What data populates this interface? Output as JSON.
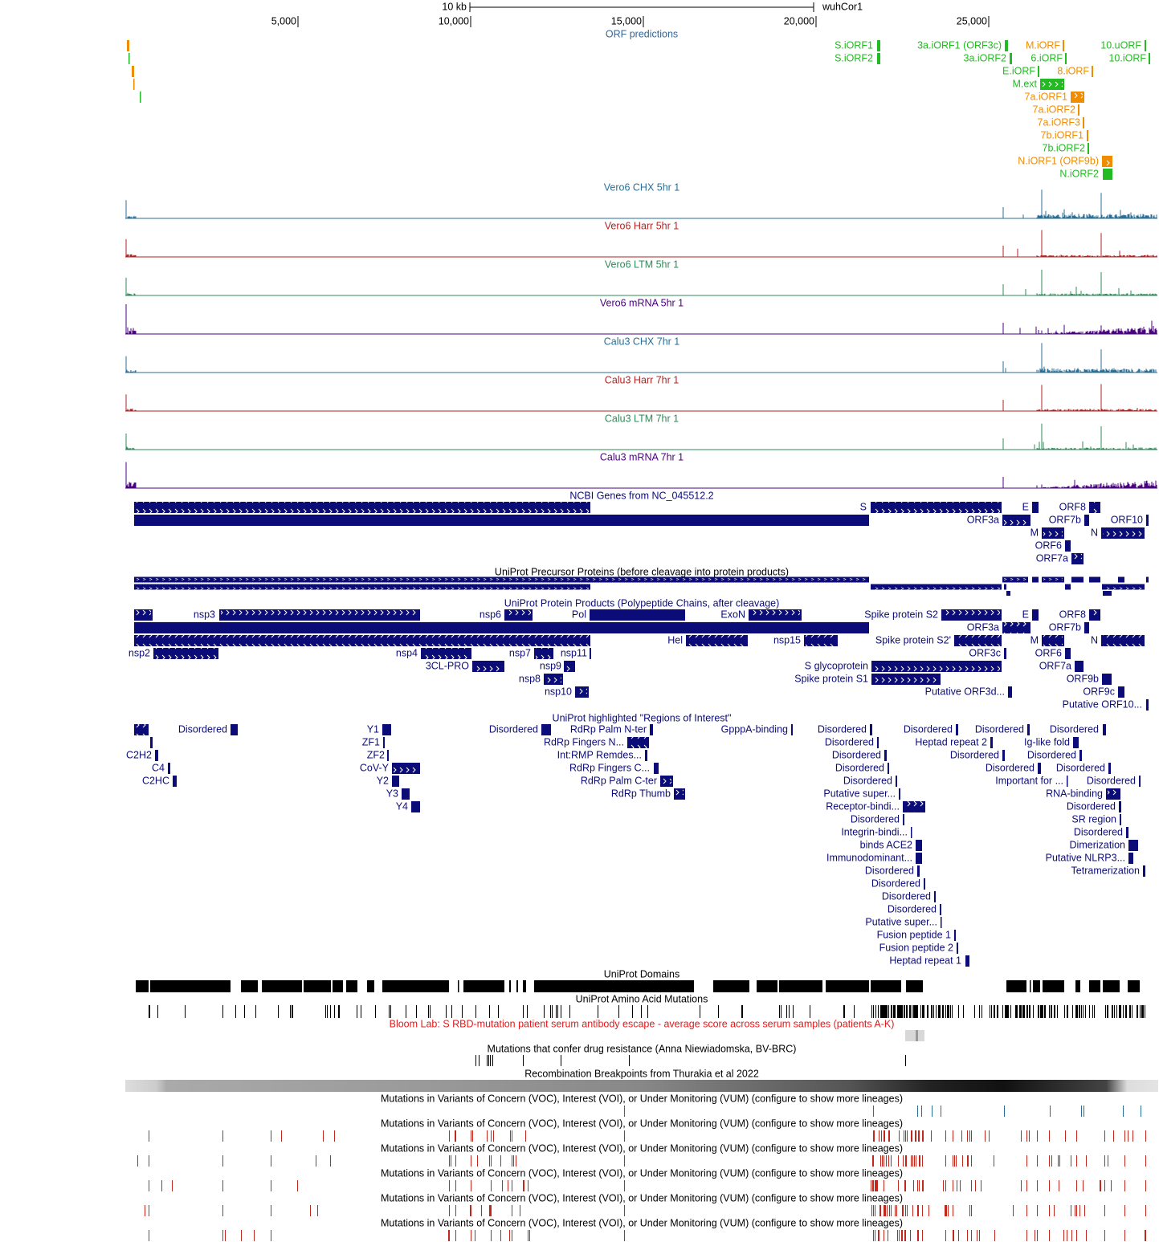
{
  "ruler": {
    "scale": "10 kb",
    "assembly": "wuhCor1",
    "tick_labels": [
      "5,000",
      "10,000",
      "15,000",
      "20,000",
      "25,000"
    ]
  },
  "tracks": [
    {
      "title": "ORF predictions",
      "features": [
        "S.iORF1",
        "S.iORF2",
        "3a.iORF1 (ORF3c)",
        "3a.iORF2",
        "M.iORF",
        "6.iORF",
        "10.uORF",
        "10.iORF",
        "E.iORF",
        "8.iORF",
        "M.ext",
        "7a.iORF1",
        "7a.iORF2",
        "7a.iORF3",
        "7b.iORF1",
        "7b.iORF2",
        "N.iORF1 (ORF9b)",
        "N.iORF2"
      ]
    },
    {
      "title": "Vero6 CHX 5hr 1"
    },
    {
      "title": "Vero6 Harr 5hr 1"
    },
    {
      "title": "Vero6 LTM 5hr 1"
    },
    {
      "title": "Vero6 mRNA 5hr 1"
    },
    {
      "title": "Calu3 CHX 7hr 1"
    },
    {
      "title": "Calu3 Harr 7hr 1"
    },
    {
      "title": "Calu3 LTM 7hr 1"
    },
    {
      "title": "Calu3 mRNA 7hr 1"
    },
    {
      "title": "NCBI Genes from NC_045512.2",
      "features": [
        "S",
        "E",
        "ORF8",
        "ORF3a",
        "ORF7b",
        "ORF10",
        "M",
        "N",
        "ORF6",
        "ORF7a"
      ]
    },
    {
      "title": "UniProt Precursor Proteins (before cleavage into protein products)"
    },
    {
      "title": "UniProt Protein Products (Polypeptide Chains, after cleavage)",
      "features": [
        "nsp3",
        "nsp6",
        "Pol",
        "ExoN",
        "Spike protein S2",
        "E",
        "ORF8",
        "ORF3a",
        "ORF7b",
        "Hel",
        "nsp15",
        "Spike protein S2'",
        "M",
        "N",
        "nsp2",
        "nsp4",
        "nsp7",
        "nsp11",
        "ORF3c",
        "ORF6",
        "3CL-PRO",
        "nsp9",
        "S glycoprotein",
        "ORF7a",
        "nsp8",
        "Spike protein S1",
        "ORF9b",
        "nsp10",
        "Putative ORF3d...",
        "ORF9c",
        "Putative ORF10..."
      ]
    },
    {
      "title": "UniProt highlighted \"Regions of Interest\"",
      "features": [
        "Disordered",
        "Y1",
        "Disordered",
        "RdRp Palm N-ter",
        "GpppA-binding",
        "Disordered",
        "Disordered",
        "Disordered",
        "Disordered",
        "ZF1",
        "RdRp Fingers N...",
        "Disordered",
        "Heptad repeat 2",
        "Ig-like fold",
        "C2H2",
        "ZF2",
        "Int:RMP Remdes...",
        "Disordered",
        "Disordered",
        "Disordered",
        "C4",
        "CoV-Y",
        "RdRp Fingers C...",
        "Disordered",
        "Disordered",
        "Disordered",
        "C2HC",
        "Y2",
        "RdRp Palm C-ter",
        "Disordered",
        "Important for ...",
        "Disordered",
        "Y3",
        "RdRp Thumb",
        "Putative super...",
        "RNA-binding",
        "Y4",
        "Receptor-bindi...",
        "Disordered",
        "Disordered",
        "SR region",
        "Integrin-bindi...",
        "Disordered",
        "binds ACE2",
        "Dimerization",
        "Immunodominant...",
        "Putative NLRP3...",
        "Disordered",
        "Tetramerization",
        "Disordered",
        "Disordered",
        "Disordered",
        "Putative super...",
        "Fusion peptide 1",
        "Fusion peptide 2",
        "Heptad repeat 1"
      ]
    },
    {
      "title": "UniProt Domains"
    },
    {
      "title": "UniProt Amino Acid Mutations"
    },
    {
      "title": "Bloom Lab: S RBD-mutation patient serum antibody escape - average score across serum samples (patients A-K)"
    },
    {
      "title": "Mutations that confer drug resistance (Anna Niewiadomska, BV-BRC)"
    },
    {
      "title": "Recombination Breakpoints from Thurakia et al 2022"
    },
    {
      "title": "Mutations in Variants of Concern (VOC), Interest (VOI), or Under Monitoring (VUM) (configure to show more lineages)"
    },
    {
      "title": "Mutations in Variants of Concern (VOC), Interest (VOI), or Under Monitoring (VUM) (configure to show more lineages)"
    },
    {
      "title": "Mutations in Variants of Concern (VOC), Interest (VOI), or Under Monitoring (VUM) (configure to show more lineages)"
    },
    {
      "title": "Mutations in Variants of Concern (VOC), Interest (VOI), or Under Monitoring (VUM) (configure to show more lineages)"
    },
    {
      "title": "Mutations in Variants of Concern (VOC), Interest (VOI), or Under Monitoring (VUM) (configure to show more lineages)"
    },
    {
      "title": "Mutations in Variants of Concern (VOC), Interest (VOI), or Under Monitoring (VUM) (configure to show more lineages)"
    }
  ]
}
